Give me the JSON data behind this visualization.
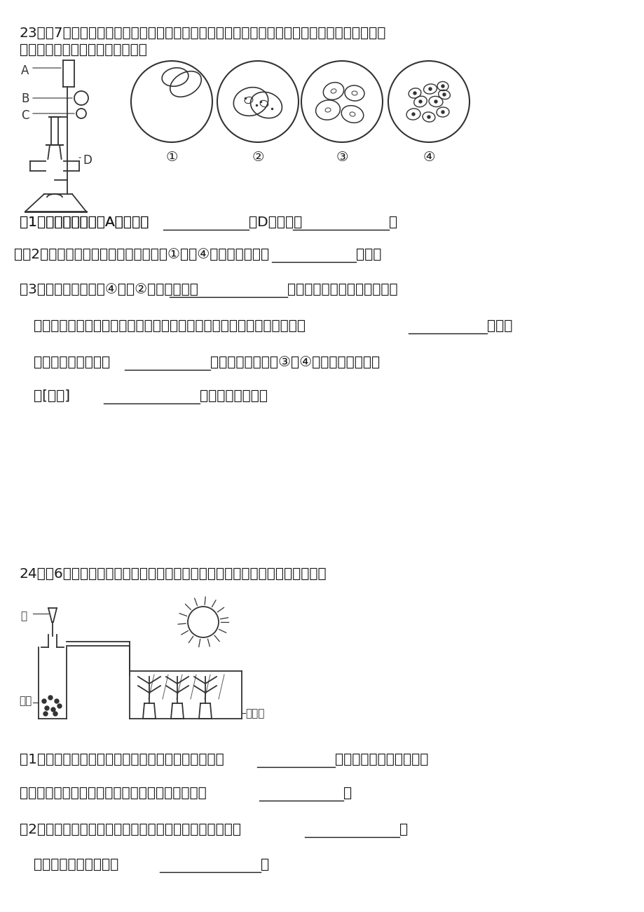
{
  "background_color": "#ffffff",
  "page_width": 9.2,
  "page_height": 13.02,
  "text_color": "#1a1a1a",
  "line_color": "#333333",
  "font_size_main": 14.5,
  "font_size_small": 12,
  "q23_line1": "23．（7分）在观察口腔上皮细胞临时装片时，王刚同学用显微镜先后在视野中看到了下列不同",
  "q23_line2": "的物像效果，如图所示．请回答．",
  "q23_q1": "（1）显微镜结构中，A的名称是",
  "q23_q1b": "，D的名称是",
  "q23_q1c": "．",
  "q23_q2_dot": "．",
  "q23_q2": "（2）王刚在实验中，观察到的效果由①变成④，他应将装片向",
  "q23_q2b": "移动．",
  "q23_q3": "（3）要使观察效果由④变成②，他应该转动",
  "q23_q3b": "，由低倍物镜换成高倍物镜．",
  "q23_q3c": "但换成高倍物镜后，王刚发现，视野变暗了，这时他应该转动遮光器选择",
  "q23_q3d": "光圈，",
  "q23_q3e": "同时转动反光镜选择",
  "q23_q3f": "面镜．观察效果由③到④，他应调节显微镜",
  "q23_q3g": "的[＿＿]",
  "q23_q3h": "（填字母序号）．",
  "q24_line1": "24．（6分）如图为种子呼吸作用和植物光合作用的实验装置图，请据图回答：",
  "q24_q1": "（1）瓶中加适量水后种子的呼吸作用会加强，产生的",
  "q24_q1b": "气体增多，从而使玻璃罩",
  "q24_q2": "内幼苗的光合作用增强，说明此气体是光合作用的",
  "q24_q2b": "．",
  "q24_q3": "（2）将玻璃罩内叶片取下脱色后滴加碘液观察到的现象是",
  "q24_q3b": "，",
  "q24_q4": "说明光合作用的产物是",
  "q24_q4b": "．"
}
